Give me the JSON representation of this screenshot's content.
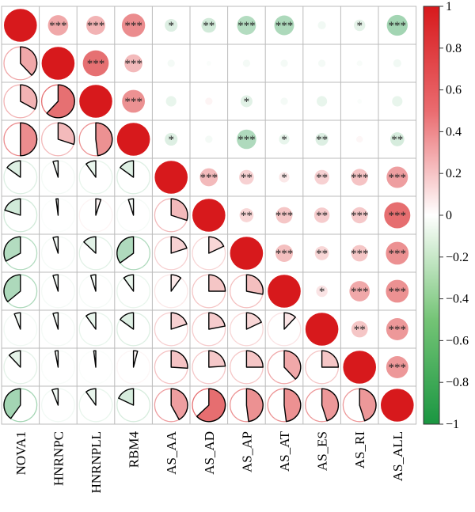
{
  "chart_data": {
    "type": "heatmap",
    "style": "correlogram-pie-lower-circle-upper",
    "variables": [
      "NOVA1",
      "HNRNPC",
      "HNRNPLL",
      "RBM4",
      "AS_AA",
      "AS_AD",
      "AS_AP",
      "AS_AT",
      "AS_ES",
      "AS_RI",
      "AS_ALL"
    ],
    "matrix": [
      [
        1.0,
        0.38,
        0.33,
        0.5,
        -0.15,
        -0.2,
        -0.33,
        -0.36,
        -0.06,
        -0.12,
        -0.4
      ],
      [
        0.38,
        1.0,
        0.62,
        0.3,
        -0.05,
        -0.02,
        -0.05,
        -0.05,
        -0.05,
        -0.03,
        -0.06
      ],
      [
        0.33,
        0.62,
        1.0,
        0.48,
        -0.1,
        0.05,
        -0.13,
        -0.05,
        -0.1,
        -0.02,
        -0.1
      ],
      [
        0.5,
        0.3,
        0.48,
        1.0,
        -0.15,
        -0.05,
        -0.35,
        -0.1,
        -0.15,
        0.04,
        -0.18
      ],
      [
        -0.15,
        -0.05,
        -0.1,
        -0.15,
        1.0,
        0.3,
        0.2,
        0.1,
        0.2,
        0.26,
        0.42
      ],
      [
        -0.2,
        -0.02,
        0.05,
        -0.05,
        0.3,
        1.0,
        0.18,
        0.25,
        0.22,
        0.24,
        0.63
      ],
      [
        -0.33,
        -0.05,
        -0.13,
        -0.35,
        0.2,
        0.18,
        1.0,
        0.28,
        0.18,
        0.25,
        0.48
      ],
      [
        -0.36,
        -0.05,
        -0.05,
        -0.1,
        0.1,
        0.25,
        0.28,
        1.0,
        0.12,
        0.38,
        0.48
      ],
      [
        -0.06,
        -0.05,
        -0.1,
        -0.15,
        0.2,
        0.22,
        0.18,
        0.12,
        1.0,
        0.25,
        0.45
      ],
      [
        -0.12,
        -0.03,
        -0.02,
        0.04,
        0.26,
        0.24,
        0.25,
        0.38,
        0.25,
        1.0,
        0.45
      ],
      [
        -0.4,
        -0.06,
        -0.1,
        -0.18,
        0.42,
        0.63,
        0.48,
        0.48,
        0.45,
        0.45,
        1.0
      ]
    ],
    "significance": [
      [
        "",
        "***",
        "***",
        "***",
        "*",
        "**",
        "***",
        "***",
        "",
        "*",
        "***"
      ],
      [
        "***",
        "",
        "***",
        "***",
        "",
        "",
        "",
        "",
        "",
        "",
        ""
      ],
      [
        "***",
        "***",
        "",
        "***",
        "",
        "",
        "*",
        "",
        "",
        "",
        ""
      ],
      [
        "***",
        "***",
        "***",
        "",
        "*",
        "",
        "***",
        "*",
        "**",
        "",
        "**"
      ],
      [
        "*",
        "",
        "",
        "*",
        "",
        "***",
        "**",
        "*",
        "**",
        "***",
        "***"
      ],
      [
        "**",
        "",
        "",
        "",
        "***",
        "",
        "**",
        "***",
        "**",
        "***",
        "***"
      ],
      [
        "***",
        "",
        "*",
        "***",
        "**",
        "**",
        "",
        "***",
        "**",
        "***",
        "***"
      ],
      [
        "***",
        "",
        "",
        "*",
        "*",
        "***",
        "***",
        "",
        "*",
        "***",
        "***"
      ],
      [
        "",
        "",
        "",
        "**",
        "**",
        "**",
        "**",
        "*",
        "",
        "**",
        "***"
      ],
      [
        "*",
        "",
        "",
        "",
        "***",
        "***",
        "***",
        "***",
        "**",
        "",
        "***"
      ],
      [
        "***",
        "",
        "",
        "**",
        "***",
        "***",
        "***",
        "***",
        "***",
        "***",
        ""
      ]
    ],
    "colorbar": {
      "range": [
        -1,
        1
      ],
      "ticks": [
        "1",
        "0.8",
        "0.6",
        "0.4",
        "0.2",
        "0",
        "−0.2",
        "−0.4",
        "−0.6",
        "−0.8",
        "−1"
      ],
      "colors": {
        "negative": "#1a9641",
        "zero": "#ffffff",
        "positive": "#d7191c"
      }
    }
  }
}
